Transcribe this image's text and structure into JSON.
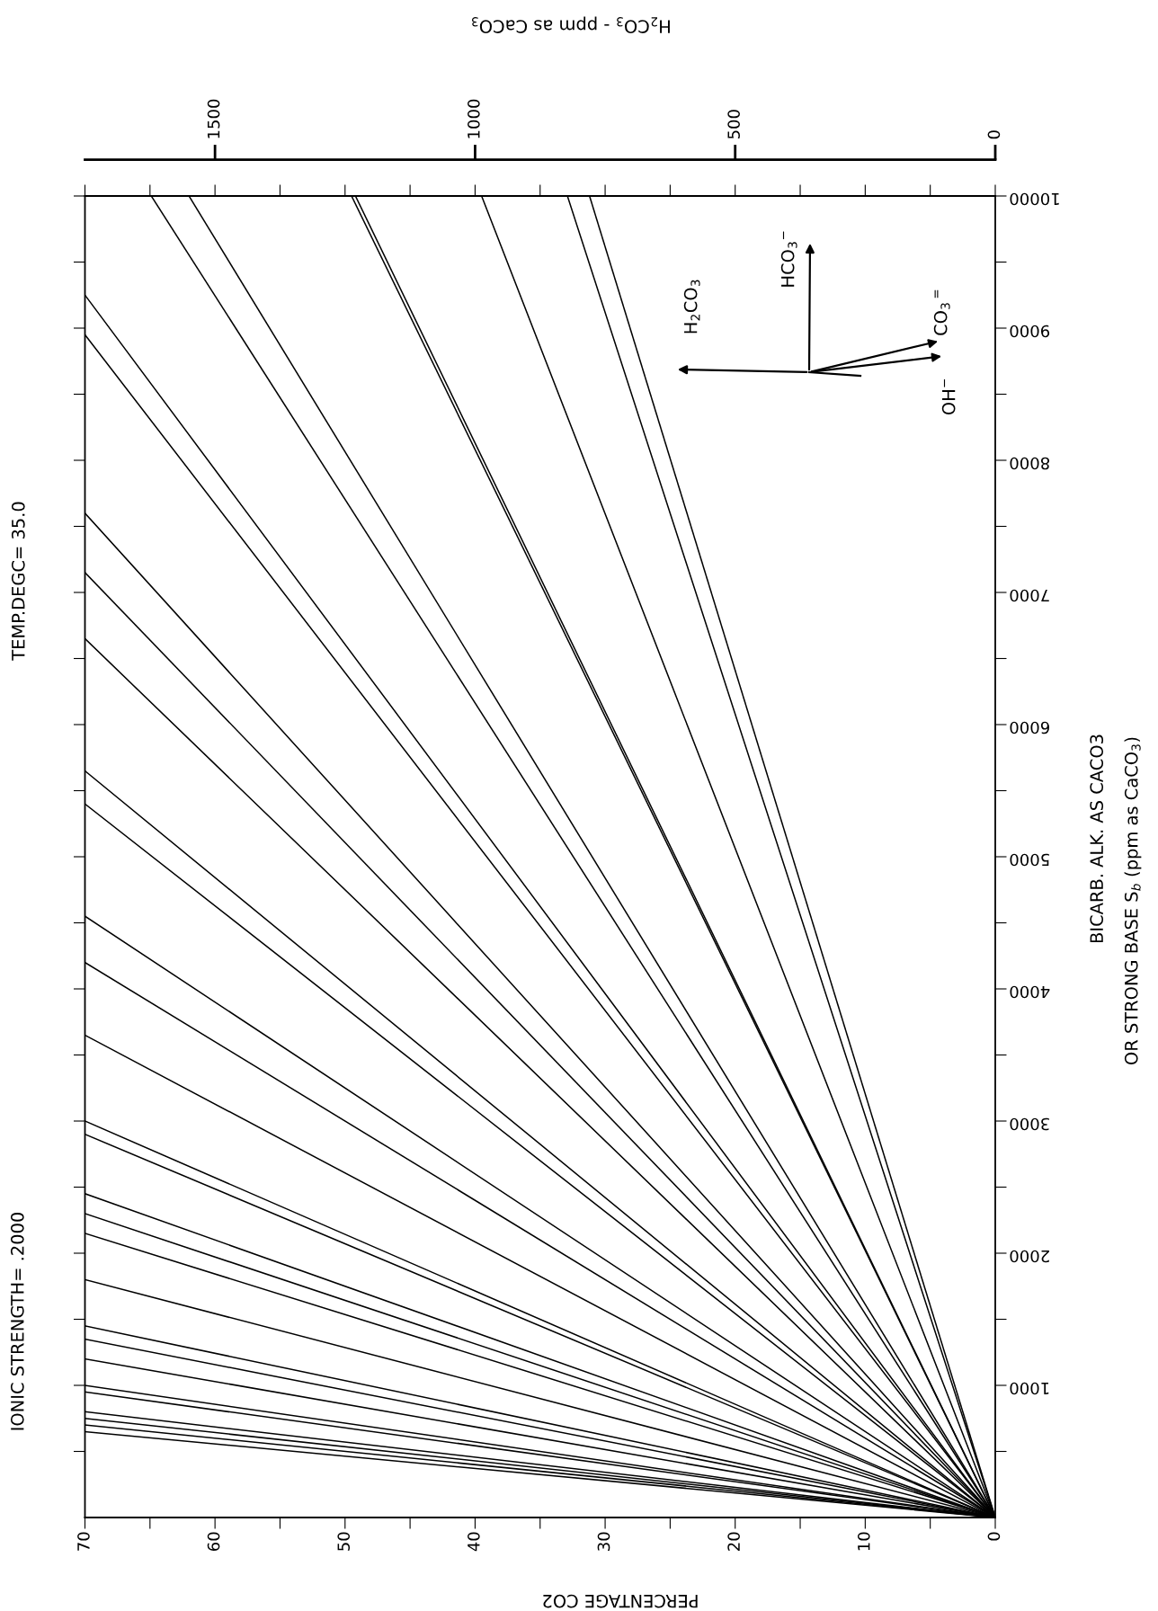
{
  "chart_data": {
    "type": "line",
    "title": "IONIC STRENGTH= .2000",
    "subtitle": "TEMP.DEGC= 35.0",
    "xlabel": "PERCENTAGE CO2",
    "ylabel": "BICARB. ALK. AS CACO3",
    "x2label": "H$_{2}$CO$_{3}$ - ppm as CaCO$_{3}$",
    "annotations": [
      "OR STRONG BASE S$_{b}$ (ppm as CaCO$_{3}$)",
      "H$_{2}$CO$_{3}$",
      "HCO$_{3}$$^{−}$",
      "CO$_{3}$$^{=}$",
      "OH$^{−}$"
    ],
    "xlim": [
      70,
      0
    ],
    "xticks": [
      0,
      {
        "value": 5,
        "label": null
      },
      10,
      {
        "value": 15,
        "label": null
      },
      20,
      {
        "value": 25,
        "label": null
      },
      30,
      {
        "value": 35,
        "label": null
      },
      40,
      {
        "value": 45,
        "label": null
      },
      50,
      {
        "value": 55,
        "label": null
      },
      60,
      {
        "value": 65,
        "label": null
      },
      70
    ],
    "ylim": [
      0,
      10000
    ],
    "yticks": [
      {
        "value": 500,
        "label": null
      },
      1000,
      {
        "value": 1500,
        "label": null
      },
      2000,
      {
        "value": 2500,
        "label": null
      },
      3000,
      {
        "value": 3500,
        "label": null
      },
      4000,
      {
        "value": 4500,
        "label": null
      },
      5000,
      {
        "value": 5500,
        "label": null
      },
      6000,
      {
        "value": 6500,
        "label": null
      },
      7000,
      {
        "value": 7500,
        "label": null
      },
      8000,
      {
        "value": 8500,
        "label": null
      },
      9000,
      {
        "value": 9500,
        "label": null
      },
      10000
    ],
    "x2lim": [
      1750,
      0
    ],
    "x2ticks": [
      0,
      500,
      1000,
      1500
    ],
    "grid": false,
    "marker": "none",
    "line_style": "solid",
    "series": [
      {
        "color": "#000000",
        "x": [
          0,
          64.9
        ],
        "values": [
          0,
          10000
        ]
      },
      {
        "color": "#000000",
        "x": [
          0,
          62.0
        ],
        "values": [
          0,
          10000
        ]
      },
      {
        "color": "#000000",
        "x": [
          0,
          49.5
        ],
        "values": [
          0,
          10000
        ]
      },
      {
        "color": "#000000",
        "x": [
          0,
          49.2
        ],
        "values": [
          0,
          10000
        ]
      },
      {
        "color": "#000000",
        "x": [
          0,
          39.5
        ],
        "values": [
          0,
          10000
        ]
      },
      {
        "color": "#000000",
        "x": [
          0,
          32.9
        ],
        "values": [
          0,
          10000
        ]
      },
      {
        "color": "#000000",
        "x": [
          0,
          31.2
        ],
        "values": [
          0,
          10000
        ]
      },
      {
        "color": "#000000",
        "x": [
          0,
          70
        ],
        "values": [
          0,
          9250
        ]
      },
      {
        "color": "#000000",
        "x": [
          0,
          70
        ],
        "values": [
          0,
          8950
        ]
      },
      {
        "color": "#000000",
        "x": [
          0,
          70
        ],
        "values": [
          0,
          7600
        ]
      },
      {
        "color": "#000000",
        "x": [
          0,
          70
        ],
        "values": [
          0,
          7150
        ]
      },
      {
        "color": "#000000",
        "x": [
          0,
          70
        ],
        "values": [
          0,
          6650
        ]
      },
      {
        "color": "#000000",
        "x": [
          0,
          70
        ],
        "values": [
          0,
          5650
        ]
      },
      {
        "color": "#000000",
        "x": [
          0,
          70
        ],
        "values": [
          0,
          5400
        ]
      },
      {
        "color": "#000000",
        "x": [
          0,
          70
        ],
        "values": [
          0,
          4550
        ]
      },
      {
        "color": "#000000",
        "x": [
          0,
          70
        ],
        "values": [
          0,
          4200
        ]
      },
      {
        "color": "#000000",
        "x": [
          0,
          70
        ],
        "values": [
          0,
          3650
        ]
      },
      {
        "color": "#000000",
        "x": [
          0,
          70
        ],
        "values": [
          0,
          3000
        ]
      },
      {
        "color": "#000000",
        "x": [
          0,
          70
        ],
        "values": [
          0,
          2900
        ]
      },
      {
        "color": "#000000",
        "x": [
          0,
          70
        ],
        "values": [
          0,
          2450
        ]
      },
      {
        "color": "#000000",
        "x": [
          0,
          70
        ],
        "values": [
          0,
          2300
        ]
      },
      {
        "color": "#000000",
        "x": [
          0,
          70
        ],
        "values": [
          0,
          2150
        ]
      },
      {
        "color": "#000000",
        "x": [
          0,
          70
        ],
        "values": [
          0,
          1800
        ]
      },
      {
        "color": "#000000",
        "x": [
          0,
          70
        ],
        "values": [
          0,
          1450
        ]
      },
      {
        "color": "#000000",
        "x": [
          0,
          70
        ],
        "values": [
          0,
          1350
        ]
      },
      {
        "color": "#000000",
        "x": [
          0,
          70
        ],
        "values": [
          0,
          1200
        ]
      },
      {
        "color": "#000000",
        "x": [
          0,
          70
        ],
        "values": [
          0,
          1000
        ]
      },
      {
        "color": "#000000",
        "x": [
          0,
          70
        ],
        "values": [
          0,
          950
        ]
      },
      {
        "color": "#000000",
        "x": [
          0,
          70
        ],
        "values": [
          0,
          800
        ]
      },
      {
        "color": "#000000",
        "x": [
          0,
          70
        ],
        "values": [
          0,
          750
        ]
      },
      {
        "color": "#000000",
        "x": [
          0,
          70
        ],
        "values": [
          0,
          700
        ]
      },
      {
        "color": "#000000",
        "x": [
          0,
          70
        ],
        "values": [
          0,
          650
        ]
      }
    ]
  }
}
